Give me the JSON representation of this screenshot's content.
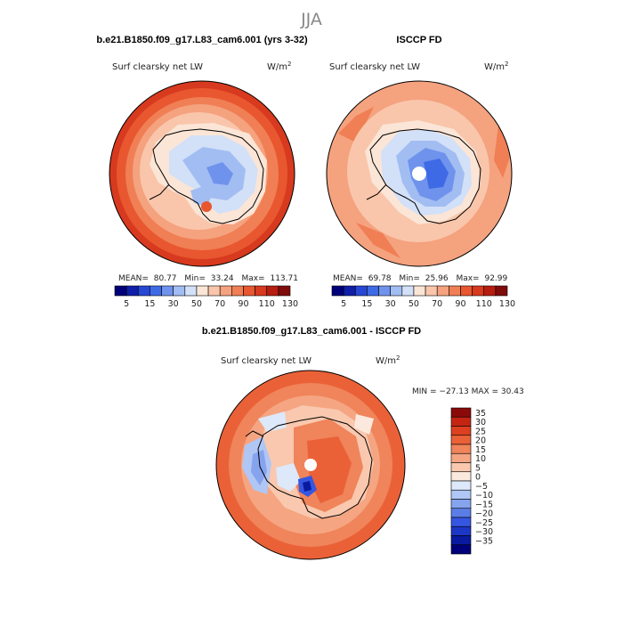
{
  "figure": {
    "season": "JJA",
    "panels": [
      {
        "title": "b.e21.B1850.f09_g17.L83_cam6.001 (yrs 3-32)",
        "variable": "Surf clearsky net LW",
        "units": "W/m",
        "units_sup": "2",
        "stats": {
          "mean_label": "MEAN=",
          "mean": "80.77",
          "min_label": "Min=",
          "min": "33.24",
          "max_label": "Max=",
          "max": "113.71"
        },
        "colorbar_ticks": [
          "5",
          "15",
          "30",
          "50",
          "70",
          "90",
          "110",
          "130"
        ]
      },
      {
        "title": "ISCCP FD",
        "variable": "Surf clearsky net LW",
        "units": "W/m",
        "units_sup": "2",
        "stats": {
          "mean_label": "MEAN=",
          "mean": "69.78",
          "min_label": "Min=",
          "min": "25.96",
          "max_label": "Max=",
          "max": "92.99"
        },
        "colorbar_ticks": [
          "5",
          "15",
          "30",
          "50",
          "70",
          "90",
          "110",
          "130"
        ]
      },
      {
        "title": "b.e21.B1850.f09_g17.L83_cam6.001 - ISCCP FD",
        "variable": "Surf clearsky net LW",
        "units": "W/m",
        "units_sup": "2",
        "minmax_text": "MIN = −27.13 MAX =  30.43",
        "colorbar_ticks": [
          "35",
          "30",
          "25",
          "20",
          "15",
          "10",
          "5",
          "0",
          "−5",
          "−10",
          "−15",
          "−20",
          "−25",
          "−30",
          "−35"
        ]
      }
    ],
    "colors": {
      "abs_scale": [
        "#00007a",
        "#0f1fa8",
        "#2748d4",
        "#3f6ae6",
        "#6f93ec",
        "#a2bdf2",
        "#d2e0f8",
        "#fbe5d6",
        "#f9c6ab",
        "#f5a27f",
        "#f07f55",
        "#e8572f",
        "#d73a1e",
        "#b71d10",
        "#800b0b"
      ],
      "diff_scale": [
        "#00007a",
        "#0a1aa0",
        "#1c36c6",
        "#3556e0",
        "#5a7ee6",
        "#86a3ee",
        "#b0c6f4",
        "#dde8fa",
        "#fce9de",
        "#f9c8ae",
        "#f5a582",
        "#f0845a",
        "#ea6138",
        "#dd4020",
        "#c42513",
        "#8a0a0a"
      ],
      "land_outline": "#000000",
      "ocean_orange": "#ec6a3e"
    }
  }
}
